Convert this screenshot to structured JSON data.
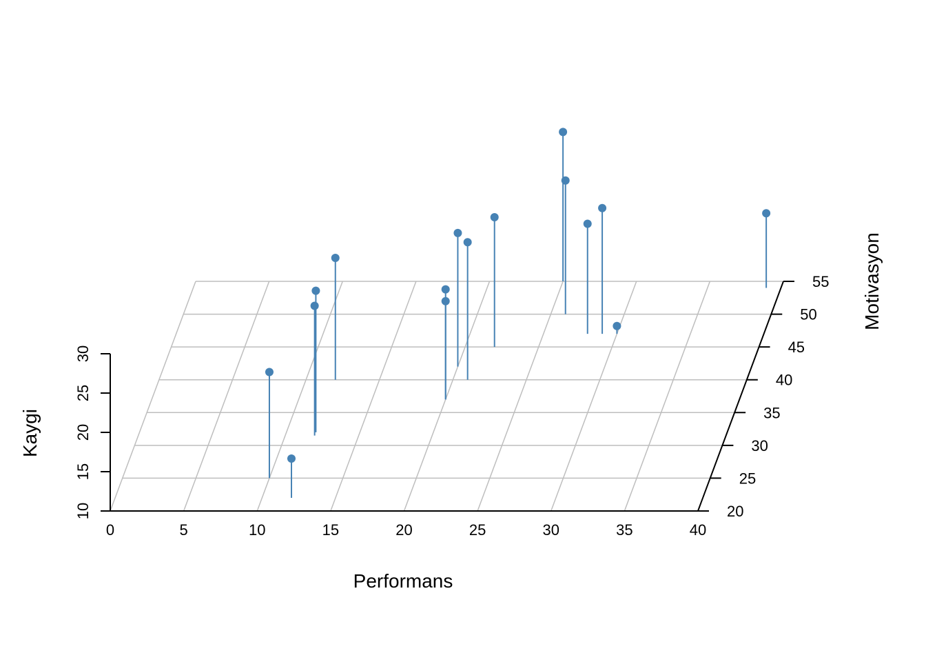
{
  "chart_data": {
    "type": "scatter3d",
    "xlabel": "Performans",
    "ylabel": "Motivasyon",
    "zlabel": "Kaygi",
    "xlim": [
      0,
      40
    ],
    "ylim": [
      20,
      55
    ],
    "zlim": [
      10,
      30
    ],
    "x_ticks": [
      "0",
      "5",
      "10",
      "15",
      "20",
      "25",
      "30",
      "35",
      "40"
    ],
    "y_ticks": [
      "20",
      "25",
      "30",
      "35",
      "40",
      "45",
      "50",
      "55"
    ],
    "z_ticks": [
      "10",
      "15",
      "20",
      "25",
      "30"
    ],
    "grid": true,
    "point_color": "#4682b4",
    "points": [
      {
        "x": 10,
        "y": 25,
        "z": 23.5
      },
      {
        "x": 12,
        "y": 40,
        "z": 25.5
      },
      {
        "x": 12,
        "y": 32,
        "z": 28
      },
      {
        "x": 12,
        "y": 31.5,
        "z": 26.5
      },
      {
        "x": 12,
        "y": 22,
        "z": 15
      },
      {
        "x": 21,
        "y": 40,
        "z": 27.5
      },
      {
        "x": 20,
        "y": 37,
        "z": 24
      },
      {
        "x": 20,
        "y": 37,
        "z": 22.5
      },
      {
        "x": 22,
        "y": 45,
        "z": 26.5
      },
      {
        "x": 20,
        "y": 42,
        "z": 27
      },
      {
        "x": 25,
        "y": 55,
        "z": 29
      },
      {
        "x": 26,
        "y": 50,
        "z": 27
      },
      {
        "x": 28,
        "y": 47,
        "z": 24
      },
      {
        "x": 29,
        "y": 47,
        "z": 26
      },
      {
        "x": 30,
        "y": 47,
        "z": 11
      },
      {
        "x": 39,
        "y": 54,
        "z": 19.5
      }
    ]
  }
}
